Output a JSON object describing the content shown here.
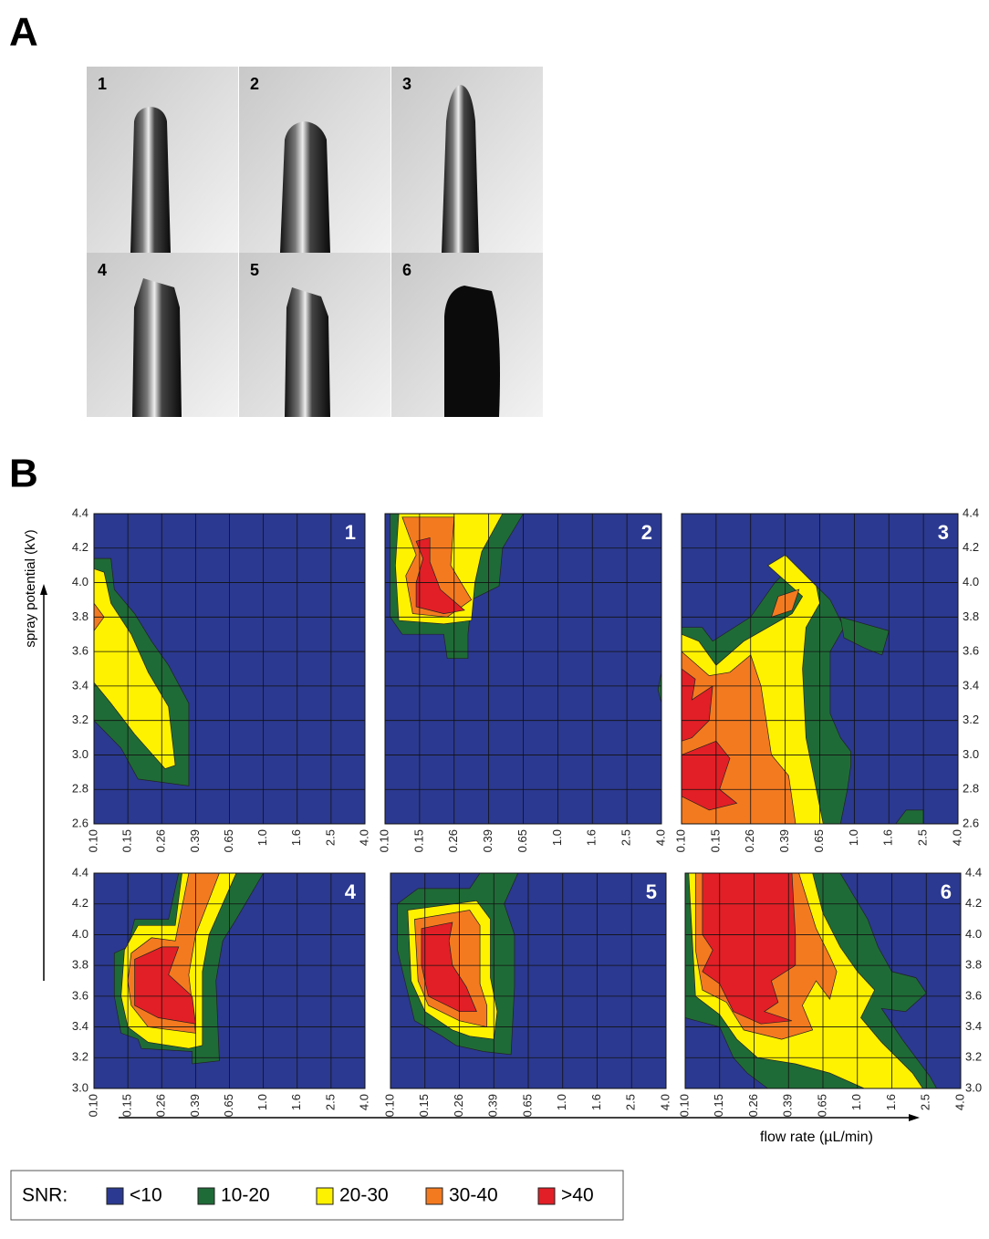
{
  "panel_a": {
    "label": "A",
    "images": [
      {
        "label": "1"
      },
      {
        "label": "2"
      },
      {
        "label": "3"
      },
      {
        "label": "4"
      },
      {
        "label": "5"
      },
      {
        "label": "6"
      }
    ]
  },
  "panel_b": {
    "label": "B",
    "y_label": "spray potential (kV)",
    "x_label": "flow rate (µL/min)",
    "x_categories": [
      "0.10",
      "0.15",
      "0.26",
      "0.39",
      "0.65",
      "1.0",
      "1.6",
      "2.5",
      "4.0"
    ],
    "top_row": {
      "ylim": [
        2.6,
        4.4
      ],
      "yticks": [
        2.6,
        2.8,
        {
          "value": 3,
          "label": "3.0"
        },
        3.2,
        3.4,
        3.6,
        3.8,
        {
          "value": 4,
          "label": "4.0"
        },
        4.2,
        4.4
      ]
    },
    "bottom_row": {
      "ylim": [
        3.0,
        4.4
      ],
      "yticks": [
        {
          "value": 3,
          "label": "3.0"
        },
        3.2,
        3.4,
        3.6,
        3.8,
        {
          "value": 4,
          "label": "4.0"
        },
        4.2,
        4.4
      ]
    },
    "plots": [
      {
        "label": "1"
      },
      {
        "label": "2"
      },
      {
        "label": "3"
      },
      {
        "label": "4"
      },
      {
        "label": "5"
      },
      {
        "label": "6"
      }
    ],
    "legend": {
      "title": "SNR:",
      "items": [
        {
          "label": "<10",
          "color": "#2b3990"
        },
        {
          "label": "10-20",
          "color": "#1f6b37"
        },
        {
          "label": "20-30",
          "color": "#fff200"
        },
        {
          "label": "30-40",
          "color": "#f47a20"
        },
        {
          "label": ">40",
          "color": "#e21f26"
        }
      ]
    }
  }
}
